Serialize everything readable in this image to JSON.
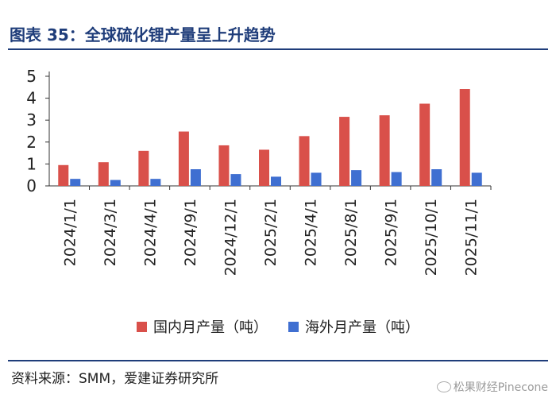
{
  "header": {
    "title": "图表 35：全球硫化锂产量呈上升趋势"
  },
  "footer": {
    "source": "资料来源：SMM，爱建证券研究所",
    "watermark": "松果财经Pinecone"
  },
  "colors": {
    "domestic": "#d9504a",
    "overseas": "#3f6fd1",
    "title": "#1f3d7a"
  },
  "chart_data": {
    "type": "bar",
    "title": "图表 35：全球硫化锂产量呈上升趋势",
    "categories": [
      "2024/1/1",
      "2024/3/1",
      "2024/4/1",
      "2024/9/1",
      "2024/12/1",
      "2025/2/1",
      "2025/4/1",
      "2025/8/1",
      "2025/9/1",
      "2025/10/1",
      "2025/11/1"
    ],
    "series": [
      {
        "name": "国内月产量（吨）",
        "values": [
          0.95,
          1.08,
          1.6,
          2.48,
          1.85,
          1.65,
          2.27,
          3.15,
          3.22,
          3.75,
          4.42
        ]
      },
      {
        "name": "海外月产量（吨）",
        "values": [
          0.32,
          0.27,
          0.32,
          0.76,
          0.54,
          0.42,
          0.6,
          0.72,
          0.63,
          0.76,
          0.6
        ]
      }
    ],
    "yticks": [
      "0",
      "1",
      "2",
      "3",
      "4",
      "5"
    ],
    "ylim": [
      0,
      5
    ],
    "xlabel": "",
    "ylabel": "",
    "legend_position": "bottom",
    "grid": false
  }
}
